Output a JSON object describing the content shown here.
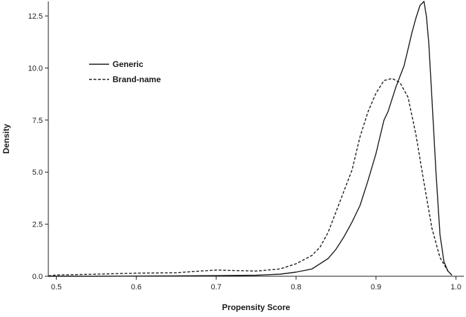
{
  "chart_data": {
    "type": "line",
    "title": "",
    "xlabel": "Propensity Score",
    "ylabel": "Density",
    "xlim": [
      0.49,
      1.01
    ],
    "ylim": [
      0,
      13.2
    ],
    "x_ticks": [
      0.5,
      0.6,
      0.7,
      0.8,
      0.9,
      1.0
    ],
    "x_tick_labels": [
      "0.5",
      "0.6",
      "0.7",
      "0.8",
      "0.9",
      "1.0"
    ],
    "y_ticks": [
      0,
      2.5,
      5.0,
      7.5,
      10.0,
      12.5
    ],
    "y_tick_labels": [
      "0.0",
      "2.5",
      "5.0",
      "7.5",
      "10.0",
      "12.5"
    ],
    "grid": false,
    "legend_position": "top-left",
    "series": [
      {
        "name": "Generic",
        "style": "solid",
        "color": "#1a1a1a",
        "x": [
          0.49,
          0.55,
          0.6,
          0.65,
          0.7,
          0.75,
          0.78,
          0.8,
          0.82,
          0.83,
          0.84,
          0.85,
          0.86,
          0.87,
          0.88,
          0.89,
          0.9,
          0.905,
          0.91,
          0.915,
          0.92,
          0.925,
          0.93,
          0.935,
          0.94,
          0.945,
          0.95,
          0.955,
          0.96,
          0.963,
          0.966,
          0.97,
          0.975,
          0.98,
          0.985,
          0.99,
          0.995
        ],
        "y": [
          0.0,
          0.0,
          0.01,
          0.02,
          0.03,
          0.05,
          0.1,
          0.2,
          0.35,
          0.6,
          0.85,
          1.3,
          1.9,
          2.6,
          3.4,
          4.6,
          5.9,
          6.7,
          7.5,
          7.9,
          8.5,
          9.1,
          9.6,
          10.1,
          10.9,
          11.7,
          12.4,
          13.0,
          13.2,
          12.5,
          11.2,
          8.5,
          5.0,
          2.0,
          0.7,
          0.25,
          0.05
        ]
      },
      {
        "name": "Brand-name",
        "style": "dashed",
        "color": "#1a1a1a",
        "x": [
          0.49,
          0.5,
          0.55,
          0.6,
          0.65,
          0.68,
          0.7,
          0.72,
          0.75,
          0.78,
          0.8,
          0.82,
          0.83,
          0.84,
          0.85,
          0.86,
          0.87,
          0.88,
          0.89,
          0.9,
          0.91,
          0.92,
          0.93,
          0.94,
          0.95,
          0.96,
          0.97,
          0.98,
          0.99,
          0.995
        ],
        "y": [
          0.02,
          0.06,
          0.1,
          0.15,
          0.17,
          0.25,
          0.3,
          0.28,
          0.25,
          0.35,
          0.6,
          1.0,
          1.4,
          2.1,
          3.1,
          4.1,
          5.1,
          6.7,
          7.9,
          8.8,
          9.4,
          9.5,
          9.3,
          8.6,
          6.8,
          4.5,
          2.3,
          0.9,
          0.25,
          0.05
        ]
      }
    ]
  }
}
